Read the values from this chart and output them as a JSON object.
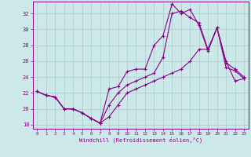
{
  "xlabel": "Windchill (Refroidissement éolien,°C)",
  "xlim": [
    -0.5,
    23.5
  ],
  "ylim": [
    17.5,
    33.5
  ],
  "xticks": [
    0,
    1,
    2,
    3,
    4,
    5,
    6,
    7,
    8,
    9,
    10,
    11,
    12,
    13,
    14,
    15,
    16,
    17,
    18,
    19,
    20,
    21,
    22,
    23
  ],
  "yticks": [
    18,
    20,
    22,
    24,
    26,
    28,
    30,
    32
  ],
  "background_color": "#cce8e8",
  "grid_color": "#aacccc",
  "line_color": "#880088",
  "line1_x": [
    0,
    1,
    2,
    3,
    4,
    5,
    6,
    7,
    8,
    9,
    10,
    11,
    12,
    13,
    14,
    15,
    16,
    17,
    18,
    19,
    20,
    21,
    22,
    23
  ],
  "line1_y": [
    22.2,
    21.7,
    21.5,
    20.0,
    20.0,
    19.5,
    18.8,
    18.2,
    22.5,
    22.8,
    24.7,
    25.0,
    25.0,
    28.0,
    29.2,
    33.2,
    32.0,
    32.5,
    30.5,
    27.3,
    30.2,
    25.2,
    24.8,
    23.8
  ],
  "line2_x": [
    0,
    1,
    2,
    3,
    4,
    5,
    6,
    7,
    8,
    9,
    10,
    11,
    12,
    13,
    14,
    15,
    16,
    17,
    18,
    19,
    20,
    21,
    22,
    23
  ],
  "line2_y": [
    22.2,
    21.7,
    21.5,
    20.0,
    20.0,
    19.5,
    18.8,
    18.2,
    20.5,
    22.0,
    23.0,
    23.5,
    24.0,
    24.5,
    26.5,
    32.0,
    32.3,
    31.5,
    30.8,
    27.5,
    30.2,
    25.8,
    25.0,
    24.0
  ],
  "line3_x": [
    0,
    1,
    2,
    3,
    4,
    5,
    6,
    7,
    8,
    9,
    10,
    11,
    12,
    13,
    14,
    15,
    16,
    17,
    18,
    19,
    20,
    21,
    22,
    23
  ],
  "line3_y": [
    22.2,
    21.7,
    21.5,
    20.0,
    20.0,
    19.5,
    18.8,
    18.2,
    19.0,
    20.5,
    22.0,
    22.5,
    23.0,
    23.5,
    24.0,
    24.5,
    25.0,
    26.0,
    27.5,
    27.5,
    30.2,
    26.0,
    23.5,
    23.8
  ]
}
